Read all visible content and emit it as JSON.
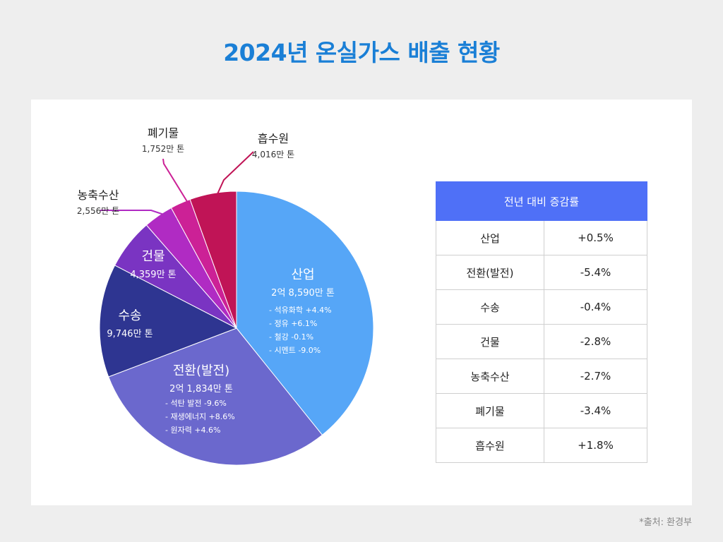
{
  "title": "2024년 온실가스 배출 현황",
  "source": "*출처: 환경부",
  "chart_data": {
    "type": "pie",
    "unit": "만 톤",
    "slices": [
      {
        "key": "industry",
        "label": "산업",
        "value_text": "2억 8,590만 톤",
        "value": 28590,
        "color": "#56a6f7",
        "details": [
          "- 석유화학 +4.4%",
          "- 정유 +6.1%",
          "- 철강 -0.1%",
          "- 시멘트 -9.0%"
        ]
      },
      {
        "key": "power",
        "label": "전환(발전)",
        "value_text": "2억 1,834만 톤",
        "value": 21834,
        "color": "#6b68cd",
        "details": [
          "- 석탄 발전 -9.6%",
          "- 재생에너지 +8.6%",
          "- 원자력 +4.6%"
        ]
      },
      {
        "key": "transport",
        "label": "수송",
        "value_text": "9,746만 톤",
        "value": 9746,
        "color": "#2e3591",
        "details": []
      },
      {
        "key": "building",
        "label": "건물",
        "value_text": "4,359만 톤",
        "value": 4359,
        "color": "#7a34c2",
        "details": []
      },
      {
        "key": "agri",
        "label": "농축수산",
        "value_text": "2,556만 톤",
        "value": 2556,
        "color": "#b02bc3",
        "details": []
      },
      {
        "key": "waste",
        "label": "폐기물",
        "value_text": "1,752만 톤",
        "value": 1752,
        "color": "#cc2196",
        "details": []
      },
      {
        "key": "sink",
        "label": "흡수원",
        "value_text": "4,016만 톤",
        "value": 4016,
        "color": "#c01456",
        "details": []
      }
    ]
  },
  "table": {
    "header": "전년 대비 증감률",
    "rows": [
      {
        "label": "산업",
        "value": "+0.5%"
      },
      {
        "label": "전환(발전)",
        "value": "-5.4%"
      },
      {
        "label": "수송",
        "value": "-0.4%"
      },
      {
        "label": "건물",
        "value": "-2.8%"
      },
      {
        "label": "농축수산",
        "value": "-2.7%"
      },
      {
        "label": "폐기물",
        "value": "-3.4%"
      },
      {
        "label": "흡수원",
        "value": "+1.8%"
      }
    ]
  }
}
